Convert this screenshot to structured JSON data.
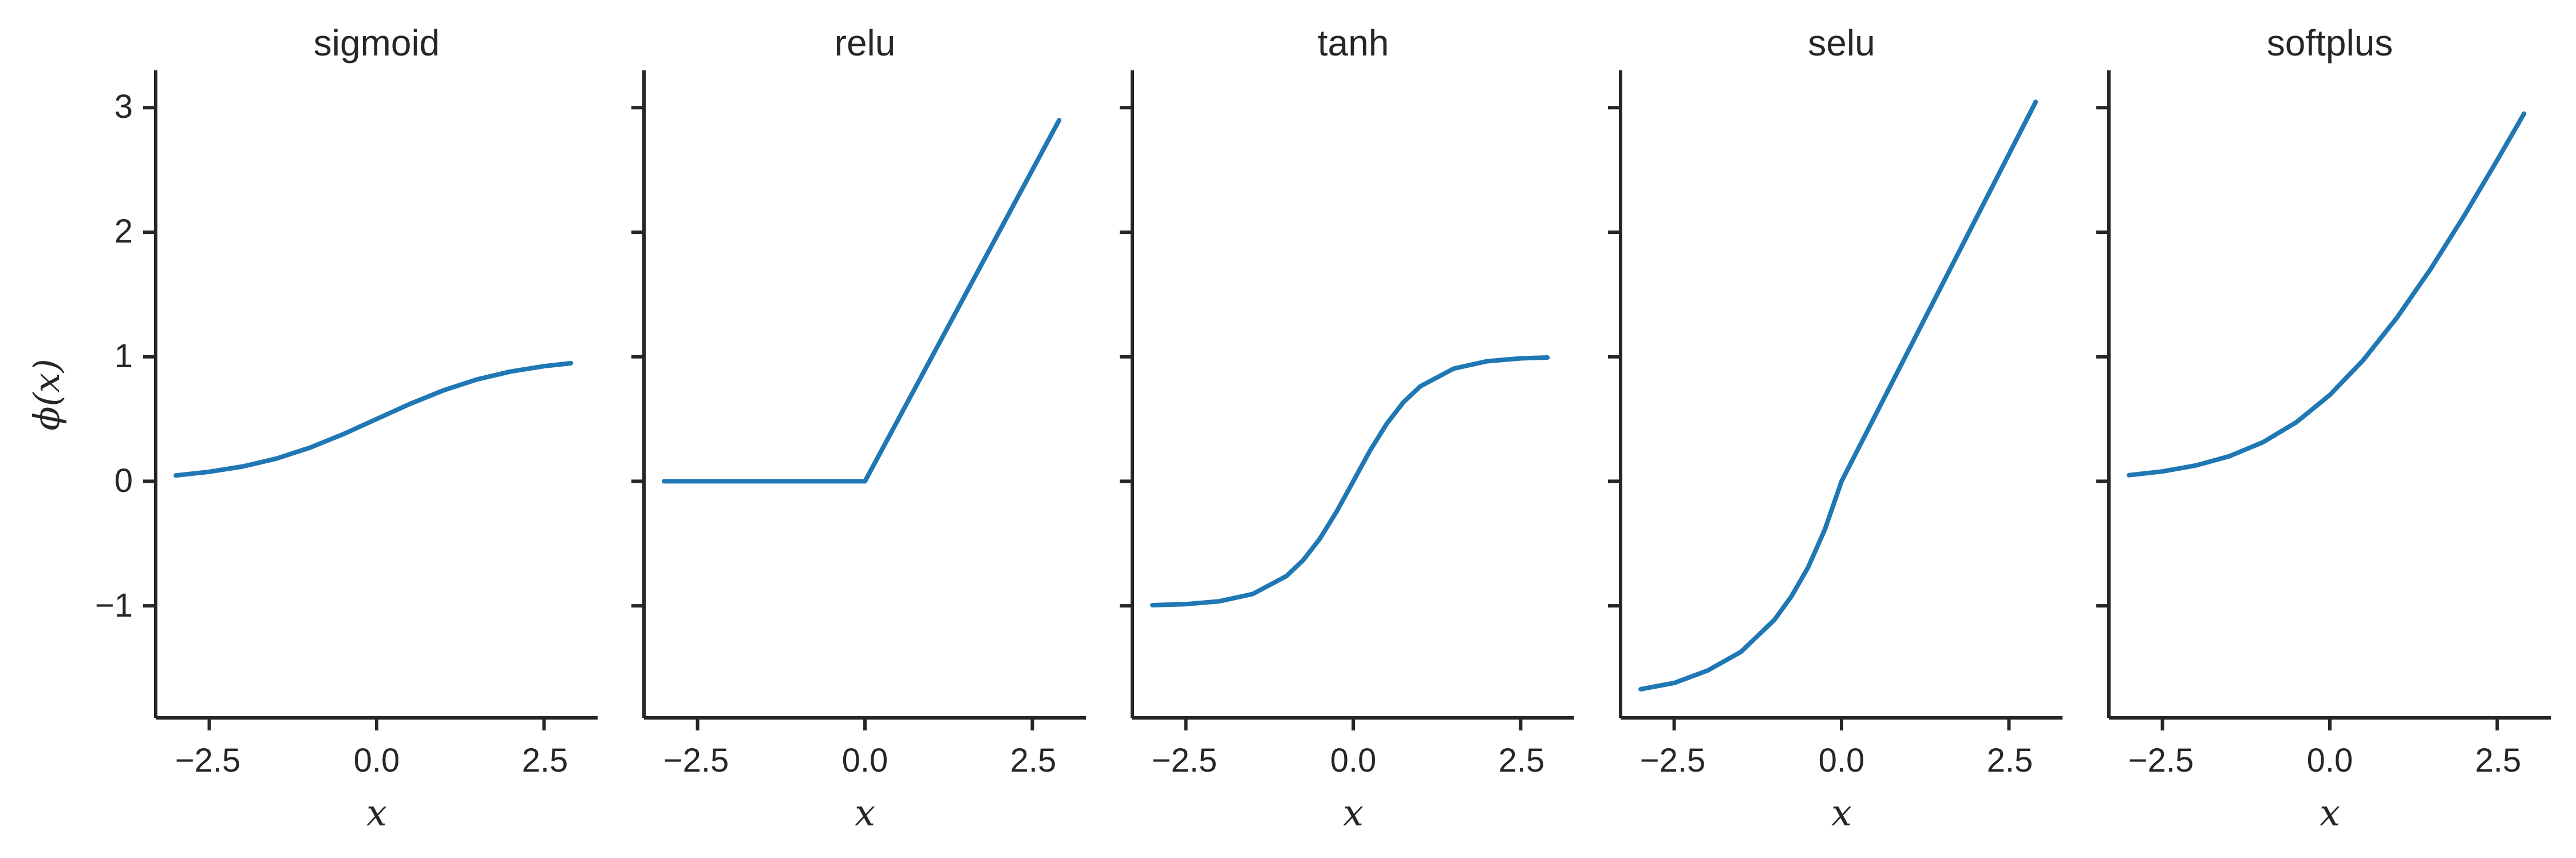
{
  "chart_data": [
    {
      "type": "line",
      "title": "sigmoid",
      "xlabel": "x",
      "ylabel": "ϕ(x)",
      "xlim": [
        -3.3,
        3.3
      ],
      "ylim": [
        -1.9,
        3.3
      ],
      "xticks": [
        -2.5,
        0.0,
        2.5
      ],
      "xtick_labels": [
        "−2.5",
        "0.0",
        "2.5"
      ],
      "yticks": [
        -1,
        0,
        1,
        2,
        3
      ],
      "ytick_labels": [
        "−1",
        "0",
        "1",
        "2",
        "3"
      ],
      "color": "#1f77b4",
      "x": [
        -3.0,
        -2.5,
        -2.0,
        -1.5,
        -1.0,
        -0.5,
        0.0,
        0.5,
        1.0,
        1.5,
        2.0,
        2.5,
        2.9
      ],
      "y": [
        0.047,
        0.076,
        0.119,
        0.182,
        0.269,
        0.378,
        0.5,
        0.622,
        0.731,
        0.818,
        0.881,
        0.924,
        0.948
      ]
    },
    {
      "type": "line",
      "title": "relu",
      "xlabel": "x",
      "xlim": [
        -3.3,
        3.3
      ],
      "ylim": [
        -1.9,
        3.3
      ],
      "xticks": [
        -2.5,
        0.0,
        2.5
      ],
      "xtick_labels": [
        "−2.5",
        "0.0",
        "2.5"
      ],
      "yticks": [
        -1,
        0,
        1,
        2,
        3
      ],
      "color": "#1f77b4",
      "x": [
        -3.0,
        0.0,
        2.9
      ],
      "y": [
        0.0,
        0.0,
        2.9
      ]
    },
    {
      "type": "line",
      "title": "tanh",
      "xlabel": "x",
      "xlim": [
        -3.3,
        3.3
      ],
      "ylim": [
        -1.9,
        3.3
      ],
      "xticks": [
        -2.5,
        0.0,
        2.5
      ],
      "xtick_labels": [
        "−2.5",
        "0.0",
        "2.5"
      ],
      "yticks": [
        -1,
        0,
        1,
        2,
        3
      ],
      "color": "#1f77b4",
      "x": [
        -3.0,
        -2.5,
        -2.0,
        -1.5,
        -1.0,
        -0.75,
        -0.5,
        -0.25,
        0.0,
        0.25,
        0.5,
        0.75,
        1.0,
        1.5,
        2.0,
        2.5,
        2.9
      ],
      "y": [
        -0.995,
        -0.987,
        -0.964,
        -0.905,
        -0.762,
        -0.635,
        -0.462,
        -0.245,
        0.0,
        0.245,
        0.462,
        0.635,
        0.762,
        0.905,
        0.964,
        0.987,
        0.994
      ]
    },
    {
      "type": "line",
      "title": "selu",
      "xlabel": "x",
      "xlim": [
        -3.3,
        3.3
      ],
      "ylim": [
        -1.9,
        3.3
      ],
      "xticks": [
        -2.5,
        0.0,
        2.5
      ],
      "xtick_labels": [
        "−2.5",
        "0.0",
        "2.5"
      ],
      "yticks": [
        -1,
        0,
        1,
        2,
        3
      ],
      "color": "#1f77b4",
      "x": [
        -3.0,
        -2.5,
        -2.0,
        -1.5,
        -1.0,
        -0.75,
        -0.5,
        -0.25,
        0.0,
        1.0,
        2.0,
        2.9
      ],
      "y": [
        -1.67,
        -1.62,
        -1.52,
        -1.369,
        -1.111,
        -0.925,
        -0.692,
        -0.388,
        0.0,
        1.051,
        2.101,
        3.047
      ]
    },
    {
      "type": "line",
      "title": "softplus",
      "xlabel": "x",
      "xlim": [
        -3.3,
        3.3
      ],
      "ylim": [
        -1.9,
        3.3
      ],
      "xticks": [
        -2.5,
        0.0,
        2.5
      ],
      "xtick_labels": [
        "−2.5",
        "0.0",
        "2.5"
      ],
      "yticks": [
        -1,
        0,
        1,
        2,
        3
      ],
      "color": "#1f77b4",
      "x": [
        -3.0,
        -2.5,
        -2.0,
        -1.5,
        -1.0,
        -0.5,
        0.0,
        0.5,
        1.0,
        1.5,
        2.0,
        2.5,
        2.9
      ],
      "y": [
        0.049,
        0.079,
        0.127,
        0.201,
        0.313,
        0.474,
        0.693,
        0.974,
        1.313,
        1.701,
        2.127,
        2.579,
        2.952
      ]
    }
  ]
}
